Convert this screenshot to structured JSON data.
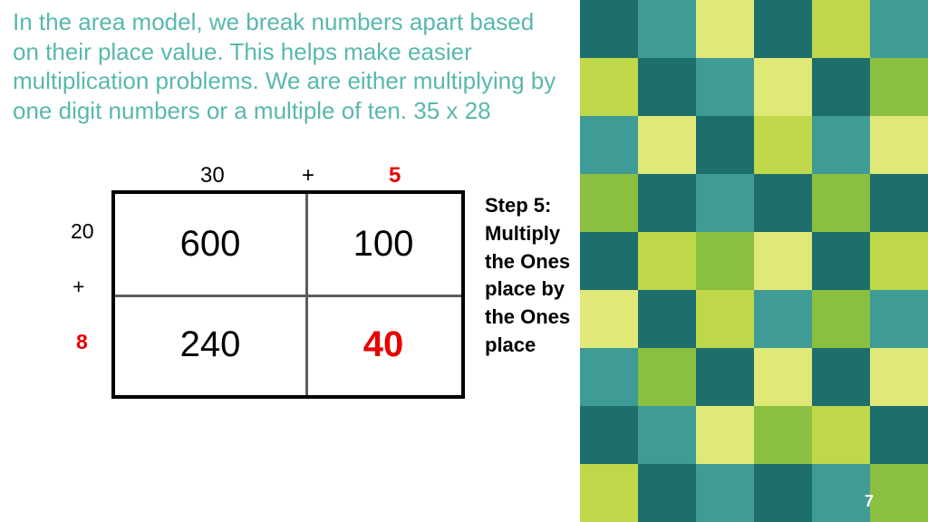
{
  "intro": "In the area model, we break numbers apart based on their place value. This helps make easier multiplication problems. We are either multiplying by one digit numbers or a multiple of ten. 35 x 28",
  "top": {
    "a": "30",
    "plus": "+",
    "b": "5"
  },
  "left": {
    "a": "20",
    "plus": "+",
    "b": "8"
  },
  "cells": {
    "tl": "600",
    "tr": "100",
    "bl": "240",
    "br": "40"
  },
  "step": "Step 5: Multiply the Ones place by the Ones place",
  "pageNum": "7",
  "colors": {
    "accent_teal": "#58b8ad",
    "highlight_red": "#e80000"
  },
  "pattern": {
    "cols": [
      640,
      704,
      768,
      832,
      896,
      960
    ],
    "rows": [
      0,
      64,
      128,
      192,
      256,
      320,
      384,
      448,
      512
    ],
    "palette": {
      "dteal": "#1e6e6e",
      "teal": "#3f9b95",
      "lime": "#bfd84a",
      "olive": "#8bbf3f",
      "yell": "#e0e878",
      "pale": "#c8e0d6"
    },
    "grid": [
      [
        "dteal",
        "teal",
        "yell",
        "dteal",
        "lime",
        "teal"
      ],
      [
        "lime",
        "dteal",
        "teal",
        "yell",
        "dteal",
        "olive"
      ],
      [
        "teal",
        "yell",
        "dteal",
        "lime",
        "teal",
        "yell"
      ],
      [
        "olive",
        "dteal",
        "teal",
        "dteal",
        "olive",
        "dteal"
      ],
      [
        "dteal",
        "lime",
        "olive",
        "yell",
        "dteal",
        "lime"
      ],
      [
        "yell",
        "dteal",
        "lime",
        "teal",
        "olive",
        "teal"
      ],
      [
        "teal",
        "olive",
        "dteal",
        "yell",
        "dteal",
        "yell"
      ],
      [
        "dteal",
        "teal",
        "yell",
        "olive",
        "lime",
        "dteal"
      ],
      [
        "lime",
        "dteal",
        "teal",
        "dteal",
        "teal",
        "olive"
      ]
    ]
  }
}
